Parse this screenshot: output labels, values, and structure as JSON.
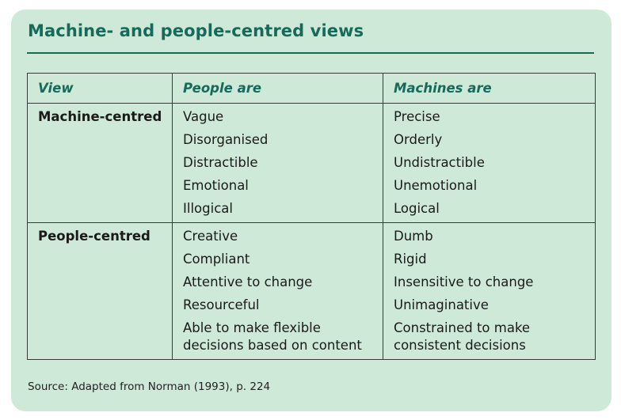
{
  "title": "Machine- and people-centred views",
  "table": {
    "headers": [
      "View",
      "People are",
      "Machines are"
    ],
    "rows": [
      {
        "view": "Machine-centred",
        "people": [
          "Vague",
          "Disorganised",
          "Distractible",
          "Emotional",
          "Illogical"
        ],
        "machines": [
          "Precise",
          "Orderly",
          "Undistractible",
          "Unemotional",
          "Logical"
        ]
      },
      {
        "view": "People-centred",
        "people": [
          "Creative",
          "Compliant",
          "Attentive to change",
          "Resourceful",
          "Able to make flexible\ndecisions based on content"
        ],
        "machines": [
          "Dumb",
          "Rigid",
          "Insensitive to change",
          "Unimaginative",
          "Constrained to make\nconsistent decisions"
        ]
      }
    ]
  },
  "source": "Source: Adapted from Norman (1993), p. 224",
  "colors": {
    "panel_background": "#cfe9d8",
    "accent": "#166a5b"
  }
}
